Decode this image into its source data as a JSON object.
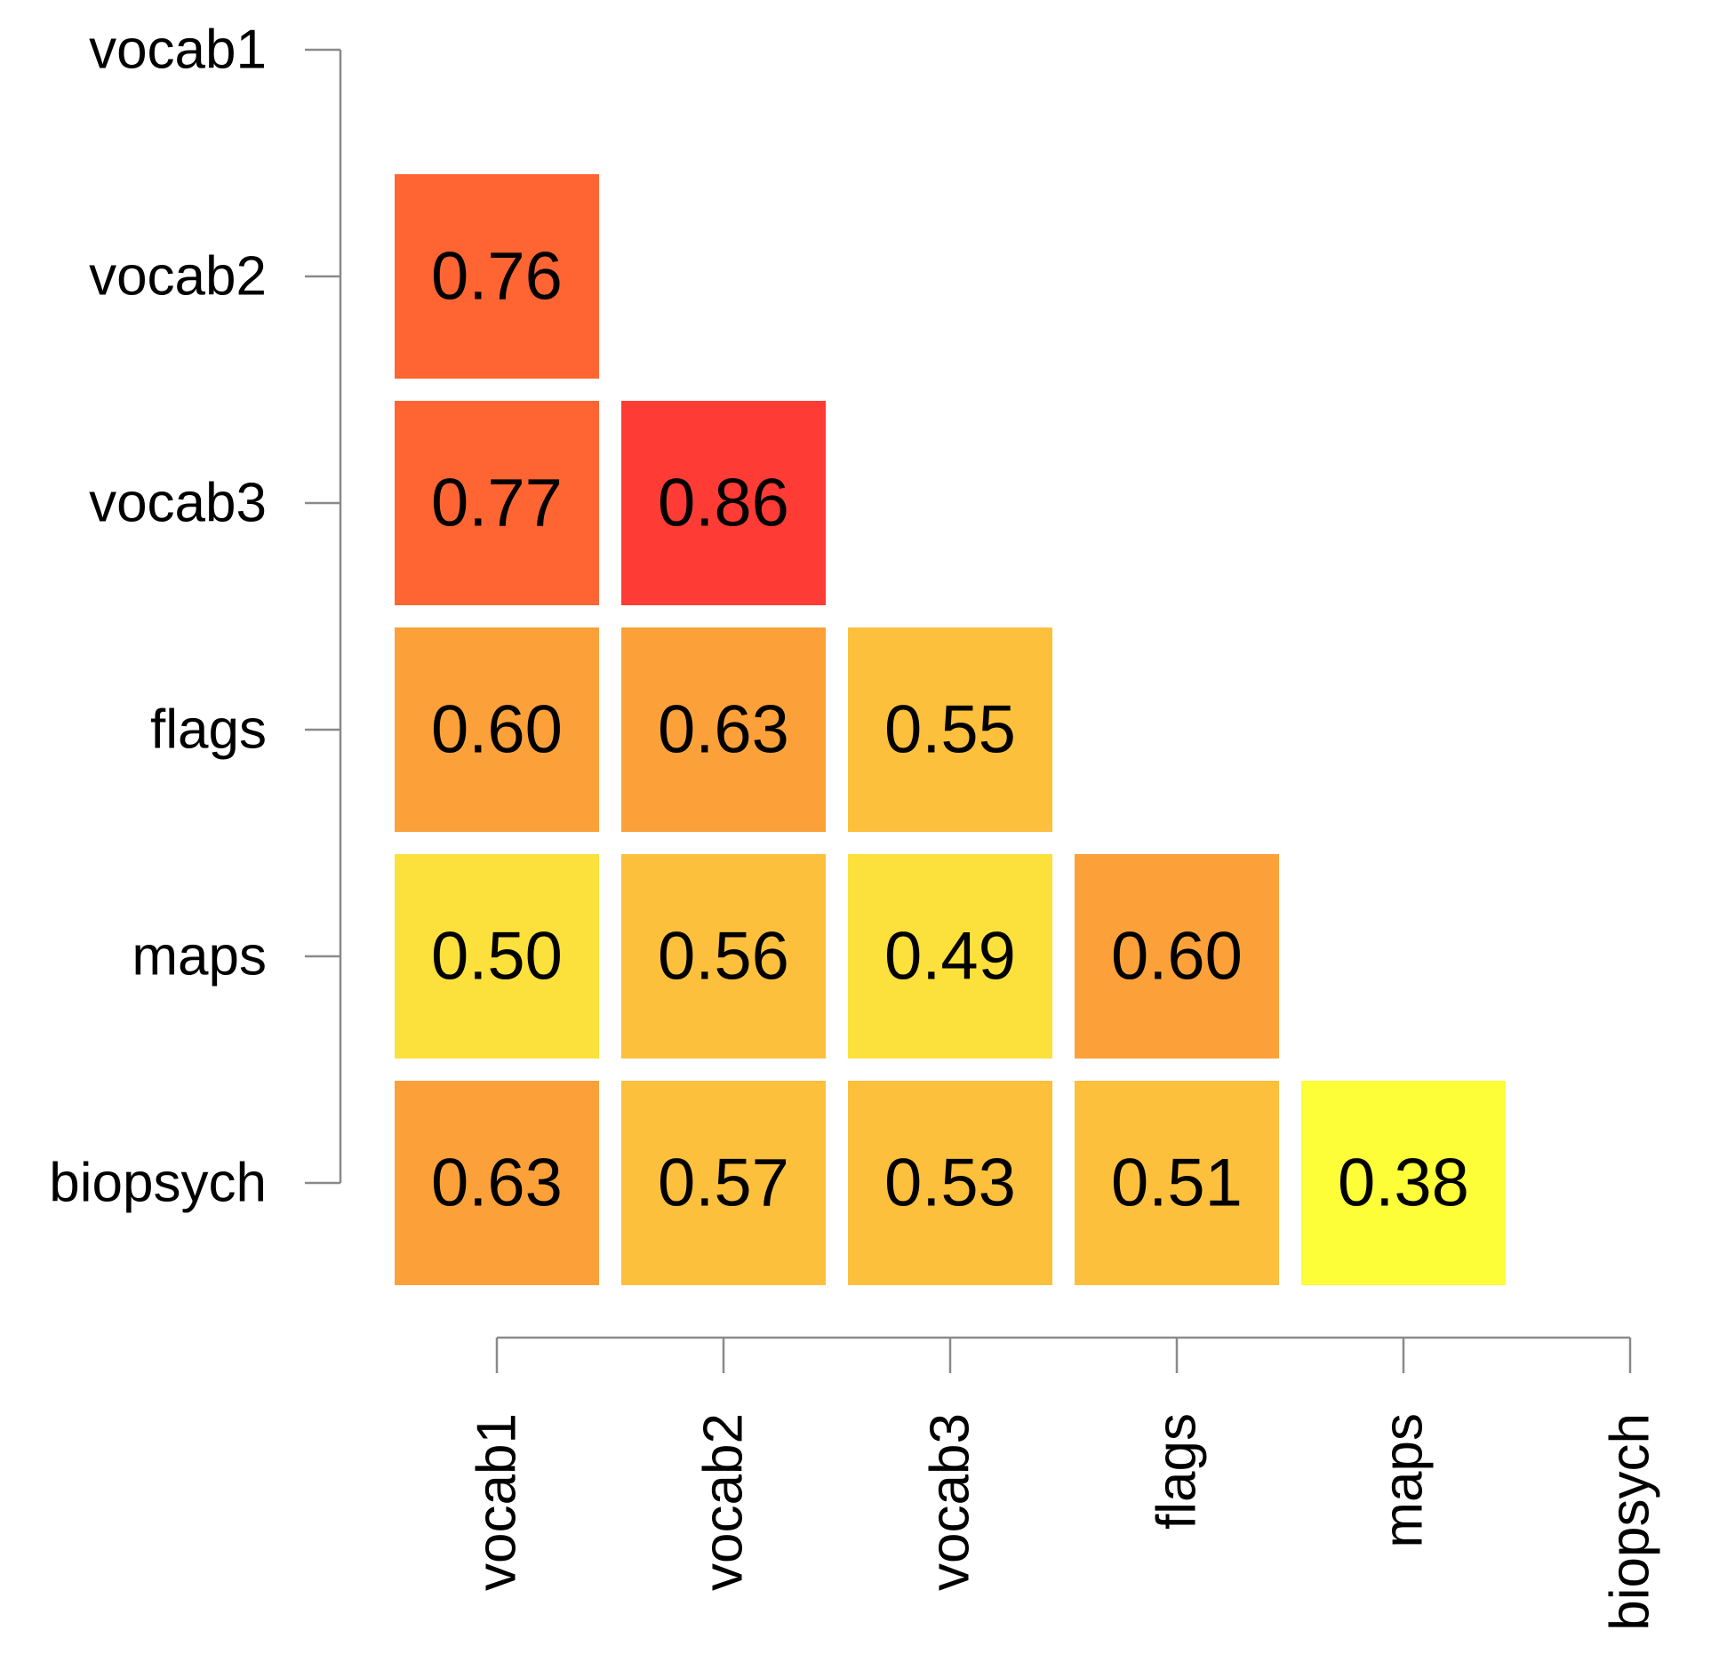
{
  "chart_data": {
    "type": "heatmap",
    "variables": [
      "vocab1",
      "vocab2",
      "vocab3",
      "flags",
      "maps",
      "biopsych"
    ],
    "layout": "lower-triangle",
    "cells": [
      {
        "row": "vocab2",
        "col": "vocab1",
        "value": 0.76,
        "label": "0.76",
        "color": "#fe6533"
      },
      {
        "row": "vocab3",
        "col": "vocab1",
        "value": 0.77,
        "label": "0.77",
        "color": "#fe6533"
      },
      {
        "row": "vocab3",
        "col": "vocab2",
        "value": 0.86,
        "label": "0.86",
        "color": "#fe3b34"
      },
      {
        "row": "flags",
        "col": "vocab1",
        "value": 0.6,
        "label": "0.60",
        "color": "#fca13a"
      },
      {
        "row": "flags",
        "col": "vocab2",
        "value": 0.63,
        "label": "0.63",
        "color": "#fca13a"
      },
      {
        "row": "flags",
        "col": "vocab3",
        "value": 0.55,
        "label": "0.55",
        "color": "#fcc03d"
      },
      {
        "row": "maps",
        "col": "vocab1",
        "value": 0.5,
        "label": "0.50",
        "color": "#fce03b"
      },
      {
        "row": "maps",
        "col": "vocab2",
        "value": 0.56,
        "label": "0.56",
        "color": "#fcc03d"
      },
      {
        "row": "maps",
        "col": "vocab3",
        "value": 0.49,
        "label": "0.49",
        "color": "#fce03b"
      },
      {
        "row": "maps",
        "col": "flags",
        "value": 0.6,
        "label": "0.60",
        "color": "#fca13a"
      },
      {
        "row": "biopsych",
        "col": "vocab1",
        "value": 0.63,
        "label": "0.63",
        "color": "#fca13a"
      },
      {
        "row": "biopsych",
        "col": "vocab2",
        "value": 0.57,
        "label": "0.57",
        "color": "#fcc03d"
      },
      {
        "row": "biopsych",
        "col": "vocab3",
        "value": 0.53,
        "label": "0.53",
        "color": "#fcc03d"
      },
      {
        "row": "biopsych",
        "col": "flags",
        "value": 0.51,
        "label": "0.51",
        "color": "#fcc03d"
      },
      {
        "row": "biopsych",
        "col": "maps",
        "value": 0.38,
        "label": "0.38",
        "color": "#fdfd38"
      }
    ]
  }
}
